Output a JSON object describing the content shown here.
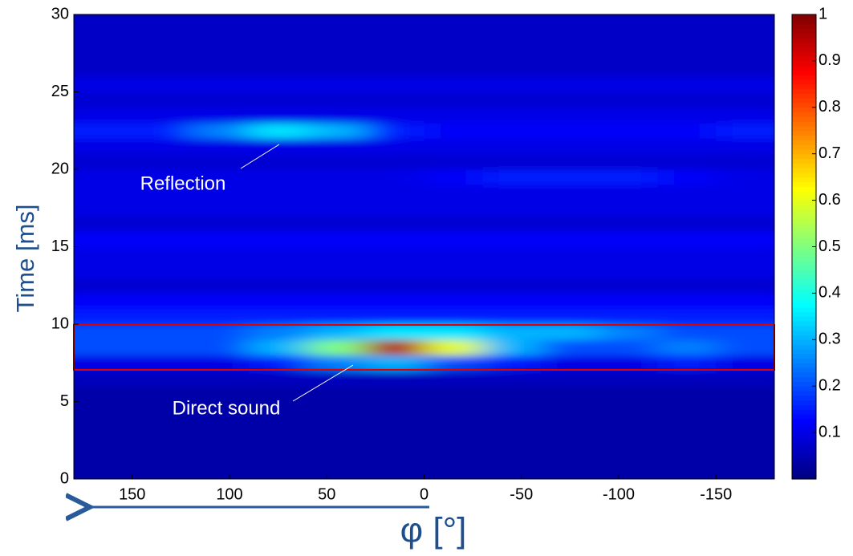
{
  "chart_data": {
    "type": "heatmap",
    "ylabel": "Time [ms]",
    "xlabel": "φ [°]",
    "annotations": [
      "Reflection",
      "Direct sound"
    ],
    "colormap": "jet",
    "xlim": [
      180,
      -180
    ],
    "ylim": [
      0,
      30
    ],
    "clim": [
      0,
      1
    ],
    "xticks": [
      150,
      100,
      50,
      0,
      -50,
      -100,
      -150
    ],
    "yticks": [
      0,
      5,
      10,
      15,
      20,
      25,
      30
    ],
    "cticks": [
      0.1,
      0.2,
      0.3,
      0.4,
      0.5,
      0.6,
      0.7,
      0.8,
      0.9,
      1
    ],
    "x": [
      165,
      135,
      105,
      75,
      45,
      15,
      -15,
      -45,
      -75,
      -105,
      -135,
      -165
    ],
    "y": [
      0.5,
      1.5,
      2.5,
      3.5,
      4.5,
      5.5,
      6.5,
      7.5,
      8.5,
      9.5,
      10.5,
      11.5,
      12.5,
      13.5,
      14.5,
      15.5,
      16.5,
      17.5,
      18.5,
      19.5,
      20.5,
      21.5,
      22.5,
      23.5,
      24.5,
      25.5,
      26.5,
      27.5,
      28.5,
      29.5
    ],
    "z": [
      [
        0.04,
        0.04,
        0.04,
        0.04,
        0.04,
        0.04,
        0.04,
        0.04,
        0.04,
        0.04,
        0.04,
        0.04
      ],
      [
        0.04,
        0.04,
        0.04,
        0.04,
        0.04,
        0.04,
        0.04,
        0.04,
        0.04,
        0.04,
        0.04,
        0.04
      ],
      [
        0.04,
        0.04,
        0.04,
        0.04,
        0.04,
        0.04,
        0.04,
        0.04,
        0.04,
        0.04,
        0.04,
        0.04
      ],
      [
        0.04,
        0.04,
        0.04,
        0.04,
        0.04,
        0.04,
        0.04,
        0.04,
        0.04,
        0.04,
        0.04,
        0.04
      ],
      [
        0.04,
        0.04,
        0.04,
        0.04,
        0.04,
        0.04,
        0.04,
        0.04,
        0.04,
        0.04,
        0.04,
        0.04
      ],
      [
        0.04,
        0.04,
        0.04,
        0.04,
        0.04,
        0.04,
        0.04,
        0.04,
        0.04,
        0.04,
        0.04,
        0.04
      ],
      [
        0.06,
        0.06,
        0.06,
        0.06,
        0.06,
        0.06,
        0.06,
        0.06,
        0.06,
        0.06,
        0.06,
        0.06
      ],
      [
        0.1,
        0.1,
        0.1,
        0.15,
        0.25,
        0.3,
        0.2,
        0.15,
        0.1,
        0.1,
        0.15,
        0.1
      ],
      [
        0.2,
        0.2,
        0.2,
        0.3,
        0.5,
        0.95,
        0.6,
        0.3,
        0.2,
        0.2,
        0.25,
        0.2
      ],
      [
        0.2,
        0.2,
        0.2,
        0.25,
        0.3,
        0.35,
        0.35,
        0.3,
        0.3,
        0.25,
        0.2,
        0.2
      ],
      [
        0.15,
        0.15,
        0.15,
        0.15,
        0.15,
        0.15,
        0.15,
        0.15,
        0.15,
        0.15,
        0.15,
        0.15
      ],
      [
        0.12,
        0.12,
        0.12,
        0.12,
        0.12,
        0.12,
        0.12,
        0.12,
        0.12,
        0.12,
        0.12,
        0.12
      ],
      [
        0.08,
        0.08,
        0.08,
        0.08,
        0.08,
        0.08,
        0.08,
        0.08,
        0.08,
        0.08,
        0.08,
        0.08
      ],
      [
        0.1,
        0.1,
        0.1,
        0.1,
        0.1,
        0.1,
        0.1,
        0.1,
        0.1,
        0.1,
        0.1,
        0.1
      ],
      [
        0.1,
        0.1,
        0.1,
        0.1,
        0.1,
        0.1,
        0.1,
        0.1,
        0.1,
        0.1,
        0.1,
        0.1
      ],
      [
        0.12,
        0.12,
        0.12,
        0.12,
        0.12,
        0.12,
        0.12,
        0.12,
        0.12,
        0.12,
        0.12,
        0.12
      ],
      [
        0.08,
        0.08,
        0.08,
        0.08,
        0.08,
        0.08,
        0.08,
        0.08,
        0.08,
        0.08,
        0.08,
        0.08
      ],
      [
        0.1,
        0.1,
        0.1,
        0.1,
        0.1,
        0.1,
        0.1,
        0.1,
        0.1,
        0.1,
        0.1,
        0.1
      ],
      [
        0.1,
        0.1,
        0.1,
        0.1,
        0.1,
        0.1,
        0.1,
        0.1,
        0.1,
        0.1,
        0.1,
        0.1
      ],
      [
        0.1,
        0.1,
        0.1,
        0.1,
        0.1,
        0.1,
        0.12,
        0.15,
        0.15,
        0.15,
        0.12,
        0.1
      ],
      [
        0.08,
        0.08,
        0.08,
        0.08,
        0.08,
        0.08,
        0.08,
        0.08,
        0.08,
        0.08,
        0.08,
        0.08
      ],
      [
        0.1,
        0.1,
        0.1,
        0.1,
        0.1,
        0.1,
        0.1,
        0.1,
        0.1,
        0.1,
        0.1,
        0.1
      ],
      [
        0.15,
        0.15,
        0.25,
        0.35,
        0.3,
        0.15,
        0.12,
        0.12,
        0.12,
        0.12,
        0.12,
        0.15
      ],
      [
        0.1,
        0.1,
        0.1,
        0.1,
        0.1,
        0.1,
        0.1,
        0.1,
        0.1,
        0.1,
        0.1,
        0.1
      ],
      [
        0.08,
        0.08,
        0.08,
        0.08,
        0.08,
        0.08,
        0.08,
        0.08,
        0.08,
        0.08,
        0.08,
        0.08
      ],
      [
        0.1,
        0.1,
        0.1,
        0.1,
        0.1,
        0.1,
        0.1,
        0.1,
        0.1,
        0.1,
        0.1,
        0.1
      ],
      [
        0.07,
        0.07,
        0.07,
        0.07,
        0.07,
        0.07,
        0.07,
        0.07,
        0.07,
        0.07,
        0.07,
        0.07
      ],
      [
        0.07,
        0.07,
        0.07,
        0.07,
        0.07,
        0.07,
        0.07,
        0.07,
        0.07,
        0.07,
        0.07,
        0.07
      ],
      [
        0.07,
        0.07,
        0.07,
        0.07,
        0.07,
        0.07,
        0.07,
        0.07,
        0.07,
        0.07,
        0.07,
        0.07
      ],
      [
        0.07,
        0.07,
        0.07,
        0.07,
        0.07,
        0.07,
        0.07,
        0.07,
        0.07,
        0.07,
        0.07,
        0.07
      ]
    ]
  }
}
